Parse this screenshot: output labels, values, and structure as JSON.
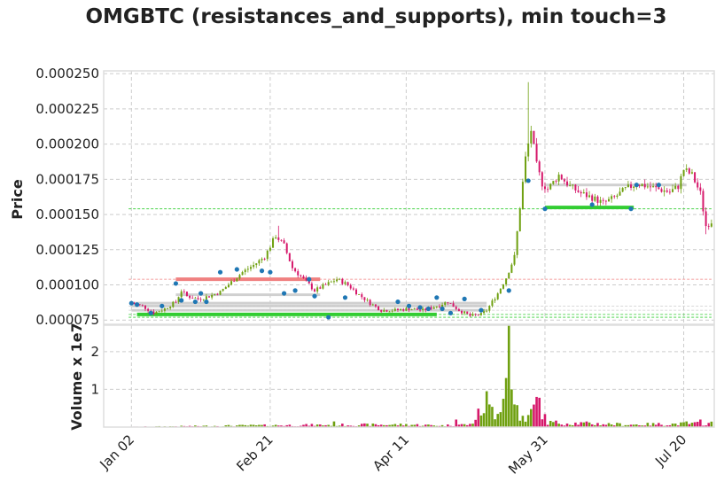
{
  "chart_data": {
    "type": "candlestick",
    "title": "OMGBTC (resistances_and_supports), min touch=3",
    "price_panel": {
      "ylabel": "Price",
      "ylim": [
        7.2e-05,
        0.000252
      ],
      "yticks": [
        7.5e-05,
        0.0001,
        0.000125,
        0.00015,
        0.000175,
        0.0002,
        0.000225,
        0.00025
      ],
      "ytick_labels": [
        "0.000075",
        "0.000100",
        "0.000125",
        "0.000150",
        "0.000175",
        "0.000200",
        "0.000225",
        "0.000250"
      ]
    },
    "volume_panel": {
      "ylabel": "Volume x 1e7",
      "ylim": [
        0,
        2.7
      ],
      "yticks": [
        1,
        2
      ],
      "ytick_labels": [
        "1",
        "2"
      ]
    },
    "xlim": [
      -10,
      210
    ],
    "xticks": [
      0,
      50,
      99,
      149,
      199
    ],
    "xtick_labels": [
      "Jan 02",
      "Feb 21",
      "Apr 11",
      "May 31",
      "Jul 20"
    ],
    "grid": true,
    "colors": {
      "up": "#6fa010",
      "down": "#d6186b",
      "support": "#32cd32",
      "resistance": "#f08080",
      "level": "#cccccc",
      "pivot": "#1f77b4"
    },
    "close_anchors": [
      [
        0,
        8.7e-05
      ],
      [
        4,
        8.5e-05
      ],
      [
        8,
        8e-05
      ],
      [
        12,
        8.3e-05
      ],
      [
        16,
        8.8e-05
      ],
      [
        18,
        9.6e-05
      ],
      [
        20,
        9.2e-05
      ],
      [
        24,
        9e-05
      ],
      [
        28,
        9.2e-05
      ],
      [
        32,
        9.5e-05
      ],
      [
        36,
        0.000102
      ],
      [
        40,
        0.000109
      ],
      [
        44,
        0.000114
      ],
      [
        48,
        0.00012
      ],
      [
        52,
        0.000135
      ],
      [
        55,
        0.000128
      ],
      [
        58,
        0.000112
      ],
      [
        62,
        0.000104
      ],
      [
        66,
        9.6e-05
      ],
      [
        70,
        0.0001
      ],
      [
        74,
        0.000104
      ],
      [
        78,
        0.0001
      ],
      [
        82,
        9.3e-05
      ],
      [
        86,
        8.7e-05
      ],
      [
        90,
        8.2e-05
      ],
      [
        95,
        8.2e-05
      ],
      [
        100,
        8.3e-05
      ],
      [
        105,
        8.2e-05
      ],
      [
        110,
        8.5e-05
      ],
      [
        114,
        8.8e-05
      ],
      [
        118,
        8.2e-05
      ],
      [
        122,
        7.8e-05
      ],
      [
        126,
        7.9e-05
      ],
      [
        128,
        8.2e-05
      ],
      [
        132,
        9.4e-05
      ],
      [
        135,
        0.000105
      ],
      [
        138,
        0.00012
      ],
      [
        140,
        0.000155
      ],
      [
        142,
        0.00019
      ],
      [
        144,
        0.00021
      ],
      [
        146,
        0.000185
      ],
      [
        148,
        0.000172
      ],
      [
        150,
        0.000168
      ],
      [
        154,
        0.000178
      ],
      [
        158,
        0.00017
      ],
      [
        162,
        0.000165
      ],
      [
        166,
        0.000162
      ],
      [
        170,
        0.000158
      ],
      [
        174,
        0.000162
      ],
      [
        178,
        0.000168
      ],
      [
        182,
        0.000172
      ],
      [
        186,
        0.00017
      ],
      [
        190,
        0.000168
      ],
      [
        194,
        0.000166
      ],
      [
        197,
        0.00017
      ],
      [
        199,
        0.000182
      ],
      [
        202,
        0.000178
      ],
      [
        205,
        0.000165
      ],
      [
        207,
        0.000142
      ],
      [
        209,
        0.000145
      ]
    ],
    "volume_anchors": [
      [
        0,
        0.01
      ],
      [
        40,
        0.05
      ],
      [
        70,
        0.07
      ],
      [
        100,
        0.08
      ],
      [
        112,
        0.05
      ],
      [
        118,
        0.08
      ],
      [
        122,
        0.08
      ],
      [
        124,
        0.3
      ],
      [
        126,
        0.5
      ],
      [
        128,
        0.95
      ],
      [
        130,
        0.6
      ],
      [
        132,
        0.4
      ],
      [
        134,
        1.3
      ],
      [
        136,
        2.7
      ],
      [
        138,
        1.0
      ],
      [
        140,
        0.4
      ],
      [
        142,
        0.15
      ],
      [
        146,
        0.8
      ],
      [
        150,
        0.15
      ],
      [
        180,
        0.08
      ],
      [
        209,
        0.12
      ]
    ],
    "volume_spikes": [
      [
        128,
        0.95
      ],
      [
        129,
        0.6
      ],
      [
        132,
        0.35
      ],
      [
        134,
        0.75
      ],
      [
        135,
        1.3
      ],
      [
        136,
        2.72
      ],
      [
        137,
        1.0
      ],
      [
        138,
        0.6
      ],
      [
        146,
        0.8
      ],
      [
        73,
        0.15
      ],
      [
        117,
        0.2
      ],
      [
        200,
        0.15
      ],
      [
        205,
        0.2
      ]
    ],
    "levels": [
      {
        "x_from": 16,
        "x_to": 68,
        "price": 0.000104,
        "kind": "resistance"
      },
      {
        "x_from": 2,
        "x_to": 110,
        "price": 7.9e-05,
        "kind": "support"
      },
      {
        "x_from": 149,
        "x_to": 181,
        "price": 0.000155,
        "kind": "support"
      },
      {
        "x_from": 0,
        "x_to": 128,
        "price": 8.5e-05,
        "kind": "level"
      },
      {
        "x_from": 0,
        "x_to": 128,
        "price": 8.2e-05,
        "kind": "level"
      },
      {
        "x_from": 0,
        "x_to": 128,
        "price": 8.7e-05,
        "kind": "level"
      },
      {
        "x_from": 16,
        "x_to": 68,
        "price": 9.3e-05,
        "kind": "level"
      },
      {
        "x_from": 149,
        "x_to": 200,
        "price": 0.000171,
        "kind": "level"
      }
    ],
    "hlines": [
      {
        "price": 0.000154,
        "kind": "support"
      },
      {
        "price": 0.000104,
        "kind": "resistance"
      },
      {
        "price": 7.9e-05,
        "kind": "support"
      },
      {
        "price": 7.7e-05,
        "kind": "support"
      },
      {
        "price": 8.2e-05,
        "kind": "level"
      },
      {
        "price": 8.5e-05,
        "kind": "level"
      }
    ],
    "pivots": [
      [
        0,
        8.7e-05
      ],
      [
        2,
        8.6e-05
      ],
      [
        7,
        8e-05
      ],
      [
        11,
        8.5e-05
      ],
      [
        16,
        0.000101
      ],
      [
        18,
        8.9e-05
      ],
      [
        23,
        8.8e-05
      ],
      [
        25,
        9.4e-05
      ],
      [
        27,
        8.8e-05
      ],
      [
        32,
        0.000109
      ],
      [
        38,
        0.000111
      ],
      [
        47,
        0.00011
      ],
      [
        50,
        0.000109
      ],
      [
        55,
        9.4e-05
      ],
      [
        59,
        9.6e-05
      ],
      [
        64,
        0.000104
      ],
      [
        66,
        9.2e-05
      ],
      [
        71,
        7.7e-05
      ],
      [
        77,
        9.1e-05
      ],
      [
        96,
        8.8e-05
      ],
      [
        100,
        8.5e-05
      ],
      [
        104,
        8.4e-05
      ],
      [
        107,
        8.3e-05
      ],
      [
        110,
        9.1e-05
      ],
      [
        112,
        8.3e-05
      ],
      [
        115,
        8e-05
      ],
      [
        120,
        9e-05
      ],
      [
        126,
        8.2e-05
      ],
      [
        136,
        9.6e-05
      ],
      [
        143,
        0.000174
      ],
      [
        149,
        0.000154
      ],
      [
        166,
        0.000157
      ],
      [
        180,
        0.000154
      ],
      [
        182,
        0.000171
      ],
      [
        190,
        0.000171
      ]
    ]
  }
}
